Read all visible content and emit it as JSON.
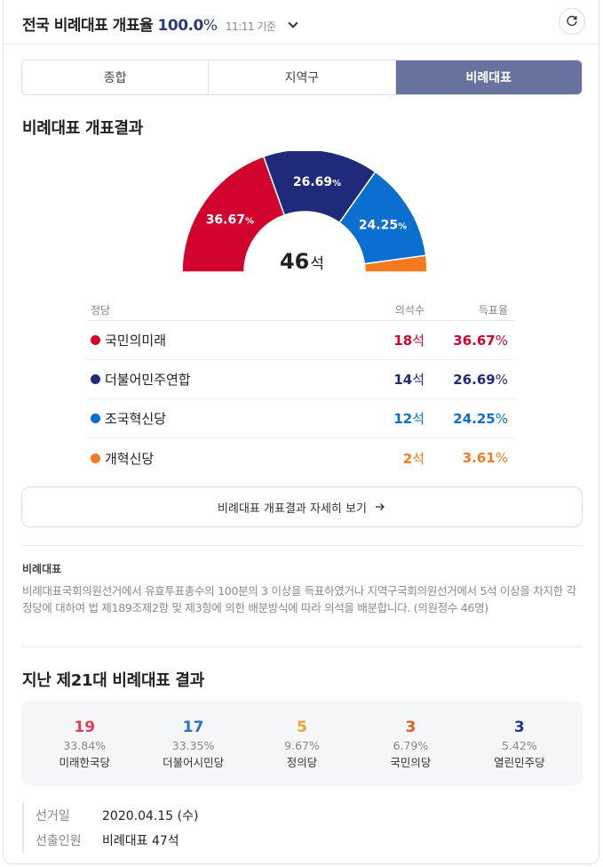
{
  "header": {
    "title": "전국 비례대표 개표율",
    "rate": "100.0",
    "pct_sign": "%",
    "time": "11:11 기준"
  },
  "tabs": [
    {
      "label": "종합",
      "active": false
    },
    {
      "label": "지역구",
      "active": false
    },
    {
      "label": "비례대표",
      "active": true
    }
  ],
  "result_section": {
    "title": "비례대표 개표결과",
    "total_seats": "46",
    "seat_unit": "석"
  },
  "chart_data": {
    "type": "pie",
    "shape": "semicircle",
    "center_label": "46석",
    "series": [
      {
        "name": "국민의미래",
        "seats": 18,
        "vote_pct": 36.67,
        "color": "#d2042d",
        "label": "36.67"
      },
      {
        "name": "더불어민주연합",
        "seats": 14,
        "vote_pct": 26.69,
        "color": "#1f2a7a",
        "label": "26.69"
      },
      {
        "name": "조국혁신당",
        "seats": 12,
        "vote_pct": 24.25,
        "color": "#0a6fcf",
        "label": "24.25"
      },
      {
        "name": "개혁신당",
        "seats": 2,
        "vote_pct": 3.61,
        "color": "#f47a20",
        "label": ""
      }
    ]
  },
  "table": {
    "headers": {
      "party": "정당",
      "seats": "의석수",
      "votes": "득표율"
    },
    "rows": [
      {
        "party": "국민의미래",
        "seats": "18",
        "seat_unit": "석",
        "vote": "36.67",
        "vote_unit": "%",
        "color": "#d2042d"
      },
      {
        "party": "더불어민주연합",
        "seats": "14",
        "seat_unit": "석",
        "vote": "26.69",
        "vote_unit": "%",
        "color": "#1f2a7a"
      },
      {
        "party": "조국혁신당",
        "seats": "12",
        "seat_unit": "석",
        "vote": "24.25",
        "vote_unit": "%",
        "color": "#0a6fcf"
      },
      {
        "party": "개혁신당",
        "seats": "2",
        "seat_unit": "석",
        "vote": "3.61",
        "vote_unit": "%",
        "color": "#f47a20"
      }
    ]
  },
  "more_button": {
    "label": "비례대표 개표결과 자세히 보기"
  },
  "note": {
    "title": "비례대표",
    "body": "비례대표국회의원선거에서 유효투표총수의 100분의 3 이상을 득표하였거나 지역구국회의원선거에서 5석 이상을 차지한 각 정당에 대하여 법 제189조제2항 및 제3항에 의한 배분방식에 따라 의석을 배분합니다. (의원정수 46명)"
  },
  "past": {
    "title": "지난 제21대 비례대표 결과",
    "items": [
      {
        "seats": "19",
        "pct": "33.84%",
        "party": "미래한국당",
        "color": "#e0405e"
      },
      {
        "seats": "17",
        "pct": "33.35%",
        "party": "더불어시민당",
        "color": "#2f6fc0"
      },
      {
        "seats": "5",
        "pct": "9.67%",
        "party": "정의당",
        "color": "#f0a22e"
      },
      {
        "seats": "3",
        "pct": "6.79%",
        "party": "국민의당",
        "color": "#ea5b26"
      },
      {
        "seats": "3",
        "pct": "5.42%",
        "party": "열린민주당",
        "color": "#1b3b8c"
      }
    ]
  },
  "election_info": {
    "date_label": "선거일",
    "date_value": "2020.04.15 (수)",
    "seats_label": "선출인원",
    "seats_value": "비례대표 47석"
  }
}
